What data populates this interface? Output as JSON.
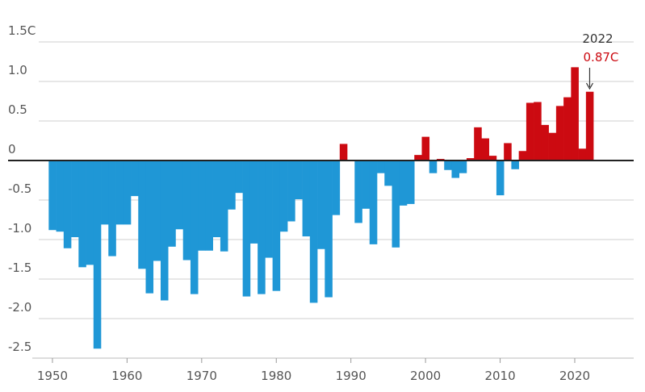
{
  "chart_data": {
    "type": "bar",
    "x": [
      1950,
      1951,
      1952,
      1953,
      1954,
      1955,
      1956,
      1957,
      1958,
      1959,
      1960,
      1961,
      1962,
      1963,
      1964,
      1965,
      1966,
      1967,
      1968,
      1969,
      1970,
      1971,
      1972,
      1973,
      1974,
      1975,
      1976,
      1977,
      1978,
      1979,
      1980,
      1981,
      1982,
      1983,
      1984,
      1985,
      1986,
      1987,
      1988,
      1989,
      1990,
      1991,
      1992,
      1993,
      1994,
      1995,
      1996,
      1997,
      1998,
      1999,
      2000,
      2001,
      2002,
      2003,
      2004,
      2005,
      2006,
      2007,
      2008,
      2009,
      2010,
      2011,
      2012,
      2013,
      2014,
      2015,
      2016,
      2017,
      2018,
      2019,
      2020,
      2021,
      2022
    ],
    "values": [
      -0.88,
      -0.9,
      -1.11,
      -0.97,
      -1.35,
      -1.32,
      -2.38,
      -0.81,
      -1.21,
      -0.81,
      -0.81,
      -0.45,
      -1.37,
      -1.68,
      -1.27,
      -1.77,
      -1.09,
      -0.87,
      -1.26,
      -1.69,
      -1.14,
      -1.14,
      -0.97,
      -1.15,
      -0.62,
      -0.41,
      -1.72,
      -1.05,
      -1.69,
      -1.23,
      -1.65,
      -0.9,
      -0.77,
      -0.49,
      -0.96,
      -1.8,
      -1.12,
      -1.73,
      -0.69,
      0.21,
      0,
      -0.79,
      -0.61,
      -1.06,
      -0.16,
      -0.32,
      -1.1,
      -0.57,
      -0.55,
      0.07,
      0.3,
      -0.16,
      0.02,
      -0.12,
      -0.22,
      -0.16,
      0.03,
      0.42,
      0.28,
      0.06,
      -0.44,
      0.22,
      -0.11,
      0.12,
      0.73,
      0.74,
      0.45,
      0.35,
      0.69,
      0.8,
      1.18,
      0.15,
      0.87
    ],
    "value_labels": [
      null,
      null,
      null,
      null,
      null,
      null,
      null,
      null,
      null,
      null,
      null,
      null,
      null,
      null,
      null,
      null,
      null,
      null,
      null,
      null,
      null,
      null,
      null,
      null,
      null,
      null,
      null,
      null,
      null,
      null,
      null,
      null,
      null,
      null,
      null,
      null,
      null,
      null,
      null,
      null,
      null,
      null,
      null,
      null,
      null,
      null,
      null,
      null,
      null,
      null,
      null,
      null,
      null,
      null,
      null,
      null,
      null,
      null,
      null,
      null,
      null,
      null,
      null,
      null,
      null,
      null,
      null,
      null,
      null,
      null,
      null,
      null,
      "0.87C"
    ],
    "annotation": "2022",
    "positive_color": "#cc0a11",
    "negative_color": "#1f97d6",
    "xlim": [
      1947.3,
      2027.9
    ],
    "xticks": [
      1950,
      1960,
      1970,
      1980,
      1990,
      2000,
      2010,
      2020
    ],
    "ylim": [
      -2.5,
      1.5
    ],
    "yticks": [
      {
        "value": 1.5,
        "label": "1.5C"
      },
      {
        "value": 1.0,
        "label": "1.0"
      },
      0.5,
      0,
      -0.5,
      {
        "value": -1.0,
        "label": "-1.0"
      },
      -1.5,
      {
        "value": -2.0,
        "label": "-2.0"
      },
      -2.5
    ],
    "grid": true
  }
}
